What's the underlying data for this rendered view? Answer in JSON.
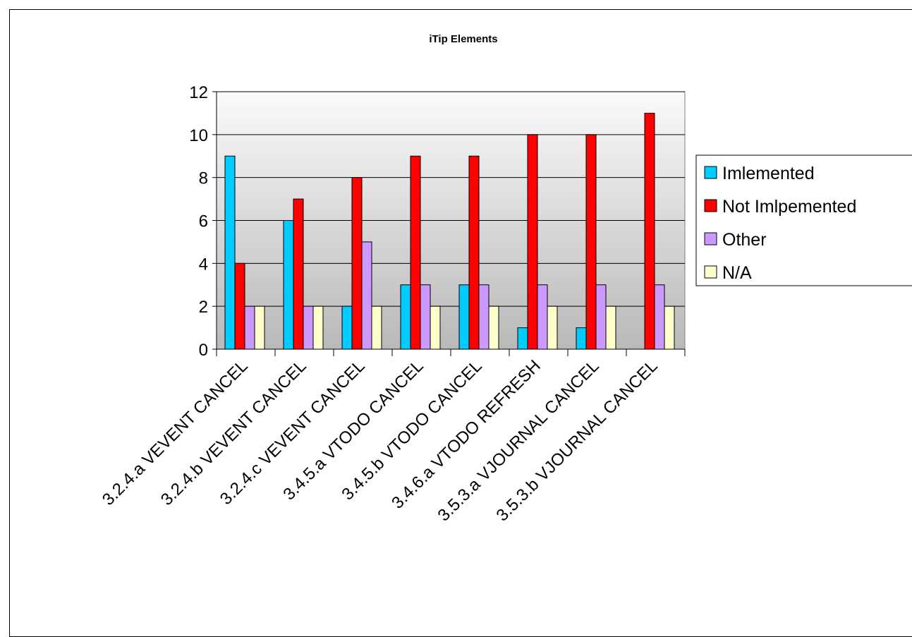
{
  "chart_data": {
    "type": "bar",
    "title": "iTip Elements",
    "xlabel": "",
    "ylabel": "",
    "ylim": [
      0,
      12
    ],
    "yticks": [
      0,
      2,
      4,
      6,
      8,
      10,
      12
    ],
    "grid": true,
    "legend_position": "right",
    "categories": [
      "3.2.4.a VEVENT CANCEL",
      "3.2.4.b VEVENT CANCEL",
      "3.2.4.c VEVENT CANCEL",
      "3.4.5.a VTODO CANCEL",
      "3.4.5.b VTODO CANCEL",
      "3.4.6.a VTODO REFRESH",
      "3.5.3.a VJOURNAL CANCEL",
      "3.5.3.b VJOURNAL CANCEL"
    ],
    "series": [
      {
        "name": "Imlemented",
        "color": "#00ccff",
        "values": [
          9,
          6,
          2,
          3,
          3,
          1,
          1,
          0
        ]
      },
      {
        "name": "Not Imlpemented",
        "color": "#ff0000",
        "values": [
          4,
          7,
          8,
          9,
          9,
          10,
          10,
          11
        ]
      },
      {
        "name": "Other",
        "color": "#cc99ff",
        "values": [
          2,
          2,
          5,
          3,
          3,
          3,
          3,
          3
        ]
      },
      {
        "name": "N/A",
        "color": "#ffffcc",
        "values": [
          2,
          2,
          2,
          2,
          2,
          2,
          2,
          2
        ]
      }
    ]
  }
}
